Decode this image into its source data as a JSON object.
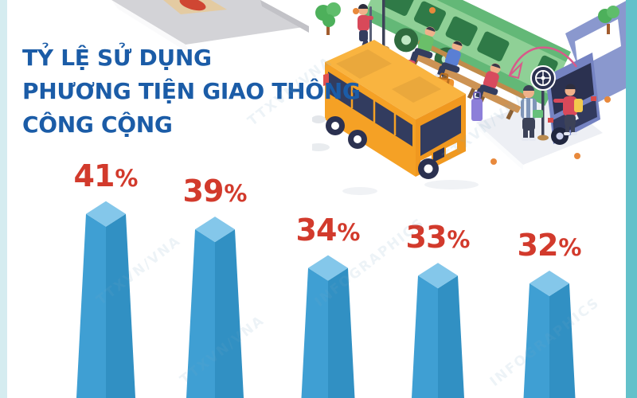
{
  "page": {
    "background": "#ffffff",
    "left_strip_color": "#d5ecf0",
    "right_strip_color": "#63c1ca"
  },
  "title": {
    "lines": [
      "TỶ LỆ SỬ DỤNG",
      "PHƯƠNG TIỆN GIAO THÔNG",
      "CÔNG CỘNG"
    ],
    "color": "#1b5ca7"
  },
  "watermark": {
    "texts": [
      "TTXVN/VNA",
      "INFOGRAPHICS"
    ]
  },
  "illustration": {
    "name": "bus-station-scene"
  },
  "chart_data": {
    "type": "bar",
    "title": "TỶ LỆ SỬ DỤNG PHƯƠNG TIỆN GIAO THÔNG CÔNG CỘNG",
    "categories": [
      "",
      "",
      "",
      "",
      ""
    ],
    "values": [
      41,
      39,
      34,
      33,
      32
    ],
    "unit": "%",
    "labels": [
      "41%",
      "39%",
      "34%",
      "33%",
      "32%"
    ],
    "xlabel": "",
    "ylabel": "",
    "value_label_color": "#d23a2c",
    "bar_top_color": "#84c7ea",
    "bar_left_color": "#3f9fd3",
    "bar_right_color": "#3190c3",
    "legend": "none",
    "grid": "off"
  }
}
